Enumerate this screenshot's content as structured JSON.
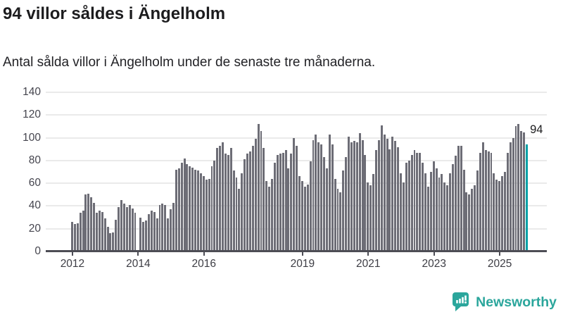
{
  "header": {
    "title": "94 villor såldes i Ängelholm",
    "subtitle": "Antal sålda villor i Ängelholm under de senaste tre månaderna."
  },
  "footer": {
    "brand": "Newsworthy"
  },
  "colors": {
    "bar": "#6d6d76",
    "highlight": "#00a1a6",
    "brand_teal": "#2ba69c",
    "grid": "#eaeaea",
    "axis": "#4d4d55",
    "text": "#1c1c1e"
  },
  "chart_data": {
    "type": "bar",
    "title": "94 villor såldes i Ängelholm",
    "subtitle": "Antal sålda villor i Ängelholm under de senaste tre månaderna.",
    "unit": "sålda villor (rullande tre månader)",
    "frequency": "monthly",
    "x_start": "2012-01",
    "x_end": "2025-11",
    "ylim": [
      0,
      140
    ],
    "yticks": [
      0,
      20,
      40,
      60,
      80,
      100,
      120,
      140
    ],
    "grid": true,
    "xticks": [
      {
        "label": "2012",
        "month_index": 0
      },
      {
        "label": "2014",
        "month_index": 24
      },
      {
        "label": "2016",
        "month_index": 48
      },
      {
        "label": "2019",
        "month_index": 84
      },
      {
        "label": "2021",
        "month_index": 108
      },
      {
        "label": "2023",
        "month_index": 132
      },
      {
        "label": "2025",
        "month_index": 156
      }
    ],
    "values": [
      26,
      24,
      25,
      34,
      36,
      50,
      51,
      48,
      43,
      34,
      36,
      35,
      29,
      22,
      16,
      17,
      28,
      39,
      45,
      42,
      39,
      41,
      38,
      34,
      null,
      30,
      26,
      27,
      33,
      36,
      35,
      29,
      41,
      42,
      41,
      29,
      37,
      43,
      72,
      73,
      78,
      82,
      77,
      75,
      74,
      72,
      71,
      69,
      66,
      63,
      64,
      75,
      80,
      91,
      93,
      96,
      86,
      85,
      91,
      71,
      65,
      55,
      69,
      81,
      86,
      88,
      93,
      99,
      112,
      106,
      91,
      62,
      57,
      64,
      78,
      85,
      86,
      87,
      89,
      73,
      86,
      100,
      93,
      66,
      62,
      57,
      59,
      79,
      98,
      103,
      96,
      94,
      83,
      73,
      103,
      94,
      64,
      55,
      52,
      71,
      83,
      101,
      96,
      97,
      96,
      104,
      98,
      85,
      61,
      58,
      68,
      89,
      98,
      111,
      103,
      99,
      90,
      101,
      97,
      92,
      69,
      61,
      78,
      80,
      85,
      89,
      87,
      87,
      78,
      69,
      57,
      70,
      79,
      73,
      65,
      68,
      61,
      58,
      69,
      77,
      84,
      93,
      93,
      72,
      52,
      50,
      55,
      58,
      71,
      87,
      96,
      89,
      88,
      87,
      69,
      63,
      62,
      66,
      70,
      87,
      96,
      100,
      110,
      112,
      106,
      105,
      94
    ],
    "highlight_last": true,
    "annotation": {
      "text": "94",
      "at_index": 166
    }
  }
}
